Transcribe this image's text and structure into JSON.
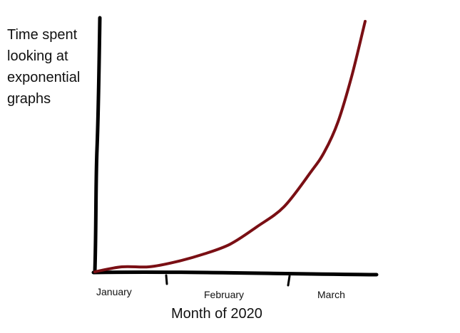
{
  "chart_data": {
    "type": "line",
    "title": "",
    "ylabel_lines": [
      "Time spent",
      "looking at",
      "exponential",
      "graphs"
    ],
    "xlabel": "Month of 2020",
    "categories": [
      "January",
      "February",
      "March"
    ],
    "x": [
      0,
      0.1,
      0.2,
      0.3,
      0.4,
      0.5,
      0.6,
      0.7,
      0.8,
      0.85,
      0.9,
      0.95,
      1.0
    ],
    "series": [
      {
        "values": [
          0,
          0.02,
          0.02,
          0.04,
          0.07,
          0.11,
          0.18,
          0.26,
          0.4,
          0.48,
          0.6,
          0.78,
          1.0
        ]
      }
    ],
    "xlim": [
      0,
      1
    ],
    "ylim": [
      0,
      1
    ],
    "grid": false,
    "colors": {
      "axis": "#000000",
      "curve": "#7a0f14"
    }
  }
}
